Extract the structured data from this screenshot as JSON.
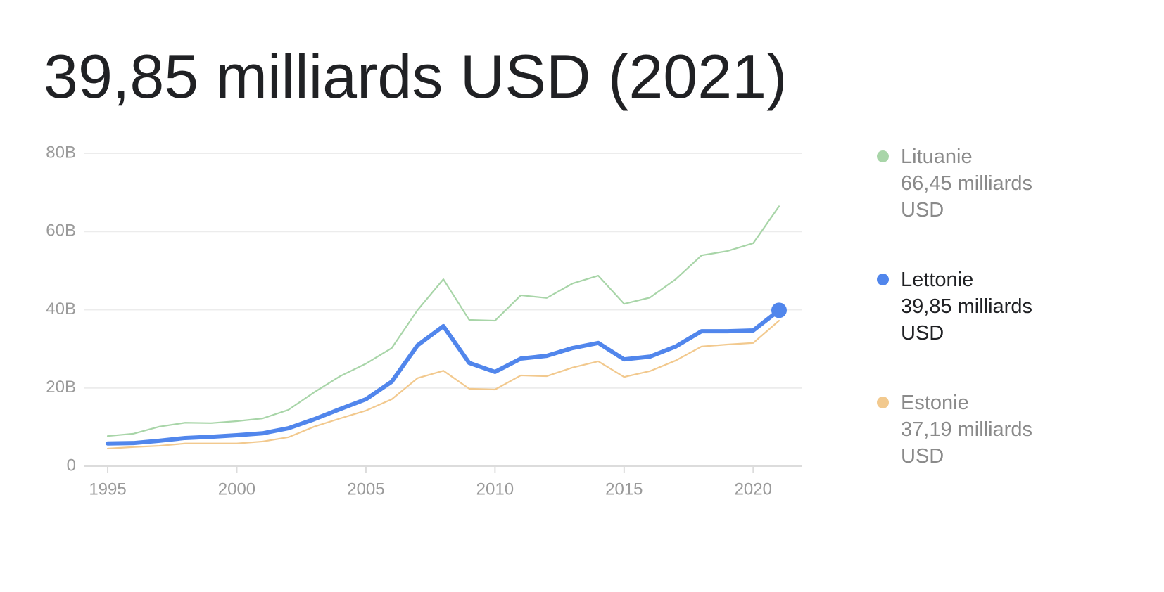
{
  "chart_data": {
    "type": "line",
    "title": "39,85 milliards USD (2021)",
    "x": [
      1995,
      1996,
      1997,
      1998,
      1999,
      2000,
      2001,
      2002,
      2003,
      2004,
      2005,
      2006,
      2007,
      2008,
      2009,
      2010,
      2011,
      2012,
      2013,
      2014,
      2015,
      2016,
      2017,
      2018,
      2019,
      2020,
      2021
    ],
    "xlim": [
      1994.1,
      2021.9
    ],
    "xticks": [
      1995,
      2000,
      2005,
      2010,
      2015,
      2020
    ],
    "ylim": [
      0,
      80
    ],
    "yticks": [
      0,
      {
        "value": 20,
        "label": "20B"
      },
      {
        "value": 40,
        "label": "40B"
      },
      {
        "value": 60,
        "label": "60B"
      },
      {
        "value": 80,
        "label": "80B"
      }
    ],
    "grid": true,
    "legend": "right",
    "series": [
      {
        "name": "Lituanie",
        "color": "#a8d5a8",
        "values": [
          7.7,
          8.3,
          10.1,
          11.1,
          11.0,
          11.5,
          12.2,
          14.4,
          18.9,
          23.0,
          26.2,
          30.2,
          39.9,
          47.8,
          37.4,
          37.2,
          43.7,
          43.0,
          46.7,
          48.7,
          41.5,
          43.1,
          47.8,
          53.9,
          55.0,
          57.0,
          66.45
        ],
        "value_labels": [
          null,
          null,
          null,
          null,
          null,
          null,
          null,
          null,
          null,
          null,
          null,
          null,
          null,
          null,
          null,
          null,
          null,
          null,
          null,
          null,
          null,
          null,
          null,
          null,
          null,
          null,
          "66,45 milliards USD"
        ]
      },
      {
        "name": "Lettonie",
        "color": "#5186ec",
        "highlight": true,
        "values": [
          5.8,
          5.9,
          6.5,
          7.2,
          7.5,
          7.9,
          8.4,
          9.7,
          12.0,
          14.6,
          17.1,
          21.6,
          30.9,
          35.8,
          26.4,
          24.1,
          27.5,
          28.2,
          30.2,
          31.5,
          27.3,
          28.0,
          30.6,
          34.5,
          34.5,
          34.7,
          39.85
        ],
        "value_labels": [
          null,
          null,
          null,
          null,
          null,
          null,
          null,
          null,
          null,
          null,
          null,
          null,
          null,
          null,
          null,
          null,
          null,
          null,
          null,
          null,
          null,
          null,
          null,
          null,
          null,
          null,
          "39,85 milliards USD"
        ]
      },
      {
        "name": "Estonie",
        "color": "#f2c98e",
        "values": [
          4.5,
          4.9,
          5.2,
          5.8,
          5.8,
          5.8,
          6.3,
          7.4,
          10.1,
          12.2,
          14.2,
          17.1,
          22.5,
          24.4,
          19.8,
          19.6,
          23.2,
          23.0,
          25.2,
          26.8,
          22.8,
          24.3,
          27.0,
          30.6,
          31.1,
          31.5,
          37.19
        ],
        "value_labels": [
          null,
          null,
          null,
          null,
          null,
          null,
          null,
          null,
          null,
          null,
          null,
          null,
          null,
          null,
          null,
          null,
          null,
          null,
          null,
          null,
          null,
          null,
          null,
          null,
          null,
          null,
          "37,19 milliards USD"
        ]
      }
    ]
  }
}
